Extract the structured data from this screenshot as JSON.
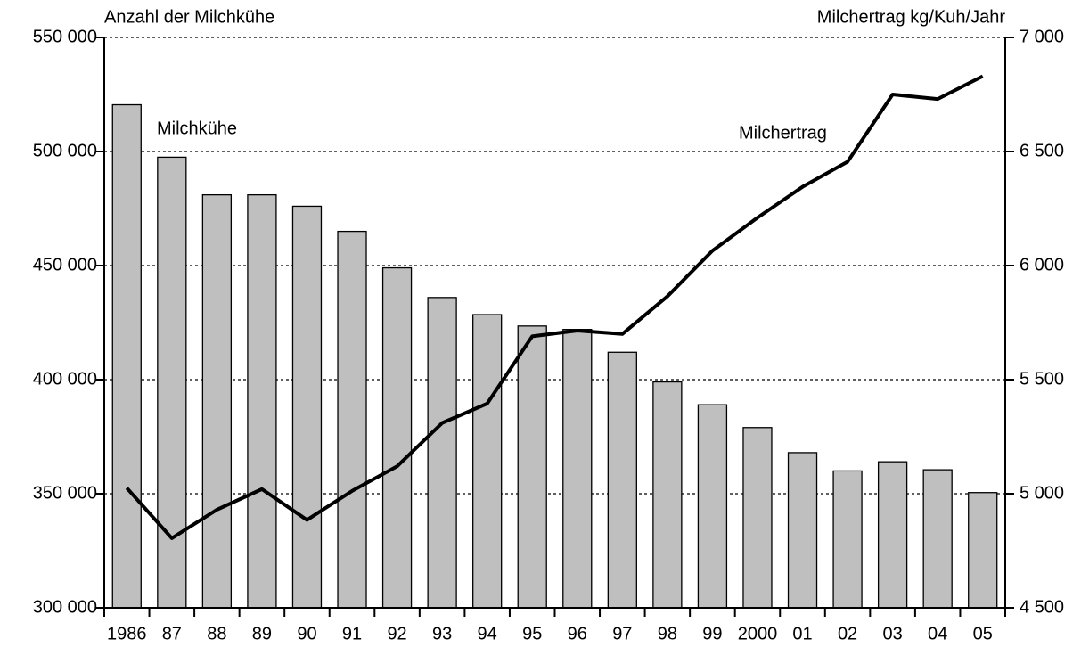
{
  "chart_data": {
    "type": "bar",
    "y_label": "Anzahl der Milchkühe",
    "y2_label": "Milchertrag kg/Kuh/Jahr",
    "categories": [
      "1986",
      "87",
      "88",
      "89",
      "90",
      "91",
      "92",
      "93",
      "94",
      "95",
      "96",
      "97",
      "98",
      "99",
      "2000",
      "01",
      "02",
      "03",
      "04",
      "05"
    ],
    "series": [
      {
        "name": "Milchkühe",
        "type": "bar",
        "color": "#bfbfbf",
        "values": [
          520500,
          497500,
          481000,
          481000,
          476000,
          465000,
          449000,
          436000,
          428500,
          423500,
          422000,
          412000,
          399000,
          389000,
          379000,
          368000,
          360000,
          364000,
          360500,
          350500
        ]
      },
      {
        "name": "Milchertrag",
        "type": "line",
        "axis": "y2",
        "color": "#000000",
        "values": [
          5025,
          4805,
          4930,
          5020,
          4885,
          5012,
          5120,
          5310,
          5395,
          5690,
          5715,
          5700,
          5865,
          6065,
          6210,
          6345,
          6455,
          6750,
          6730,
          6830
        ]
      }
    ],
    "ylim": [
      300000,
      550000
    ],
    "yticks": [
      {
        "value": 300000,
        "label": "300 000"
      },
      {
        "value": 350000,
        "label": "350 000"
      },
      {
        "value": 400000,
        "label": "400 000"
      },
      {
        "value": 450000,
        "label": "450 000"
      },
      {
        "value": 500000,
        "label": "500 000"
      },
      {
        "value": 550000,
        "label": "550 000"
      }
    ],
    "y2lim": [
      4500,
      7000
    ],
    "y2ticks": [
      {
        "value": 4500,
        "label": "4 500"
      },
      {
        "value": 5000,
        "label": "5 000"
      },
      {
        "value": 5500,
        "label": "5 500"
      },
      {
        "value": 6000,
        "label": "6 000"
      },
      {
        "value": 6500,
        "label": "6 500"
      },
      {
        "value": 7000,
        "label": "7 000"
      }
    ],
    "grid": true
  }
}
